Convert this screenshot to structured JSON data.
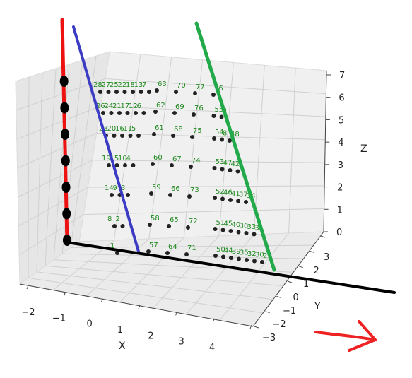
{
  "chart_data": {
    "type": "scatter",
    "projection": "3d",
    "grid": true,
    "point_color": "#222222",
    "label_color": "#1f8a1f",
    "axes": {
      "x": {
        "label": "X",
        "ticks": [
          "−2",
          "−1",
          "0",
          "1",
          "2",
          "3",
          "4"
        ]
      },
      "y": {
        "label": "Y",
        "ticks": [
          "−3",
          "−2",
          "−1",
          "0",
          "1",
          "2",
          "3"
        ]
      },
      "z": {
        "label": "Z",
        "ticks": [
          "0",
          "1",
          "2",
          "3",
          "4",
          "5",
          "6",
          "7"
        ]
      }
    },
    "point_rows": [
      {
        "labels": [
          "28",
          "27",
          "25",
          "22",
          "18",
          "13",
          "7"
        ],
        "group2": [
          "63",
          "70",
          "77",
          "36"
        ]
      },
      {
        "labels": [
          "26",
          "24",
          "21",
          "17",
          "12",
          "6"
        ],
        "group2": [
          "62",
          "69",
          "76",
          "55",
          "9"
        ]
      },
      {
        "labels": [
          "23",
          "20",
          "16",
          "11",
          "5"
        ],
        "group2": [
          "61",
          "68",
          "75",
          "54",
          "8",
          "48"
        ]
      },
      {
        "labels": [
          "19",
          "15",
          "10",
          "4"
        ],
        "group2": [
          "60",
          "67",
          "74",
          "53",
          "47",
          "42",
          "3"
        ]
      },
      {
        "labels": [
          "14",
          "9",
          "3"
        ],
        "group2": [
          "59",
          "66",
          "73",
          "52",
          "46",
          "41",
          "37",
          "34"
        ]
      },
      {
        "labels": [
          "8",
          "2"
        ],
        "group2": [
          "58",
          "65",
          "72",
          "51",
          "45",
          "40",
          "36",
          "33",
          "31"
        ]
      },
      {
        "labels": [
          "1"
        ],
        "group2": [
          "57",
          "64",
          "71",
          "50",
          "44",
          "39",
          "35",
          "32",
          "30",
          "29"
        ]
      }
    ],
    "red_line_points": 7,
    "lines": [
      {
        "color": "#ee1111"
      },
      {
        "color": "#3b3bc4"
      },
      {
        "color": "#22aa4a"
      },
      {
        "color": "#000000"
      }
    ],
    "annotation_arrow_color": "#ee2222"
  }
}
